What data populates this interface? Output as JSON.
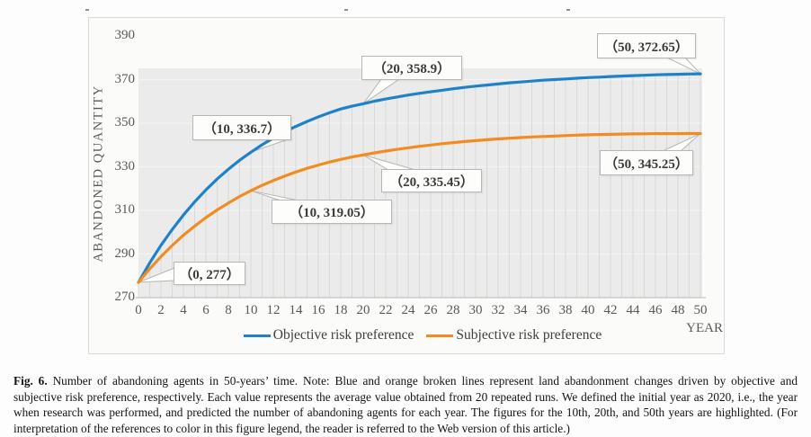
{
  "chart_data": {
    "type": "line",
    "xlabel": "YEAR",
    "ylabel": "ABANDONED QUANTITY",
    "xlim": [
      0,
      50
    ],
    "ylim": [
      270,
      390
    ],
    "x_ticks": [
      0,
      2,
      4,
      6,
      8,
      10,
      12,
      14,
      16,
      18,
      20,
      22,
      24,
      26,
      28,
      30,
      32,
      34,
      36,
      38,
      40,
      42,
      44,
      46,
      48,
      50
    ],
    "y_ticks": [
      270,
      290,
      310,
      330,
      350,
      370,
      390
    ],
    "grid": "per-year vertical drop lines on gray plot panel, faint horizontal gridlines every 20",
    "legend_position": "bottom",
    "x": [
      0,
      1,
      2,
      3,
      4,
      5,
      6,
      7,
      8,
      9,
      10,
      11,
      12,
      13,
      14,
      15,
      16,
      17,
      18,
      19,
      20,
      21,
      22,
      23,
      24,
      25,
      26,
      27,
      28,
      29,
      30,
      31,
      32,
      33,
      34,
      35,
      36,
      37,
      38,
      39,
      40,
      41,
      42,
      43,
      44,
      45,
      46,
      47,
      48,
      49,
      50
    ],
    "series": [
      {
        "name": "Objective risk preference",
        "color": "#1f82c8",
        "values": [
          277,
          285.9,
          294,
          301.2,
          307.9,
          313.9,
          319.4,
          324.4,
          328.9,
          333,
          336.7,
          340.1,
          343.2,
          346,
          348.5,
          350.8,
          352.9,
          354.8,
          356.5,
          357.8,
          358.9,
          360.1,
          361.1,
          362,
          362.9,
          363.7,
          364.4,
          365.1,
          365.8,
          366.4,
          367,
          367.5,
          368,
          368.5,
          368.9,
          369.3,
          369.7,
          370,
          370.3,
          370.6,
          370.9,
          371.1,
          371.4,
          371.6,
          371.8,
          372,
          372.2,
          372.3,
          372.45,
          372.55,
          372.65
        ]
      },
      {
        "name": "Subjective risk preference",
        "color": "#f28b22",
        "values": [
          277,
          283.2,
          288.8,
          293.9,
          298.6,
          302.8,
          306.7,
          310.2,
          313.4,
          316.4,
          319.05,
          321.5,
          323.7,
          325.7,
          327.6,
          329.3,
          330.8,
          332.2,
          333.4,
          334.5,
          335.45,
          336.4,
          337.2,
          338,
          338.7,
          339.4,
          340,
          340.6,
          341.1,
          341.6,
          342,
          342.4,
          342.8,
          343.1,
          343.4,
          343.7,
          343.9,
          344.1,
          344.3,
          344.5,
          344.7,
          344.8,
          344.9,
          345,
          345.1,
          345.15,
          345.2,
          345.2,
          345.2,
          345.25,
          345.25
        ]
      }
    ],
    "annotations": [
      {
        "label": "（0, 277）",
        "x": 0,
        "y": 277
      },
      {
        "label": "（10, 336.7）",
        "x": 10,
        "y": 336.7
      },
      {
        "label": "（20, 358.9）",
        "x": 20,
        "y": 358.9
      },
      {
        "label": "（50, 372.65）",
        "x": 50,
        "y": 372.65
      },
      {
        "label": "（10, 319.05）",
        "x": 10,
        "y": 319.05
      },
      {
        "label": "（20, 335.45）",
        "x": 20,
        "y": 335.45
      },
      {
        "label": "（50, 345.25）",
        "x": 50,
        "y": 345.25
      }
    ],
    "highlighted_years": [
      10,
      20,
      50
    ]
  },
  "caption": {
    "fig_label": "Fig. 6.",
    "text": " Number of abandoning agents in 50-years’ time. Note: Blue and orange broken lines represent land abandonment changes driven by objective and subjective risk preference, respectively. Each value represents the average value obtained from 20 repeated runs. We defined the initial year as 2020, i.e., the year when research was performed, and predicted the number of abandoning agents for each year. The figures for the 10th, 20th, and 50th years are highlighted. (For interpretation of the references to color in this figure legend, the reader is referred to the Web version of this article.)"
  }
}
